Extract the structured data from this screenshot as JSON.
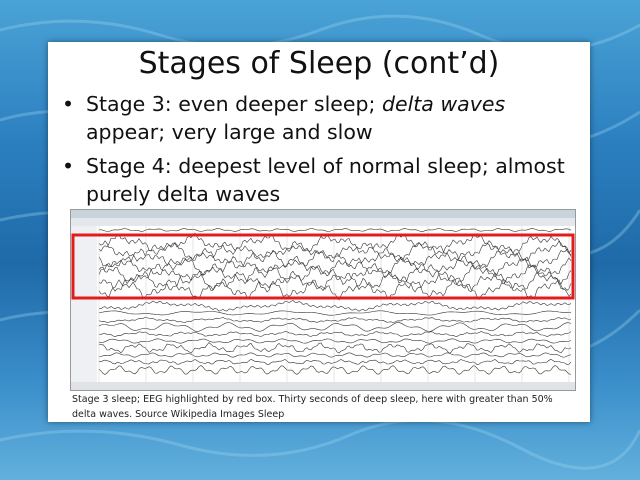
{
  "slide": {
    "title": "Stages of Sleep (cont’d)",
    "bullets": [
      {
        "prefix": "Stage 3: even deeper sleep; ",
        "emphasis": "delta waves",
        "rest": " appear; very large and slow"
      },
      {
        "prefix": "Stage 4: deepest level of normal sleep; almost purely delta waves",
        "emphasis": "",
        "rest": ""
      }
    ],
    "caption": "Stage 3 sleep; EEG highlighted by red box. Thirty seconds of deep sleep, here with greater than 50% delta waves. Source Wikipedia Images Sleep"
  },
  "colors": {
    "highlight_box": "#e41b1b",
    "trace": "#333333"
  }
}
